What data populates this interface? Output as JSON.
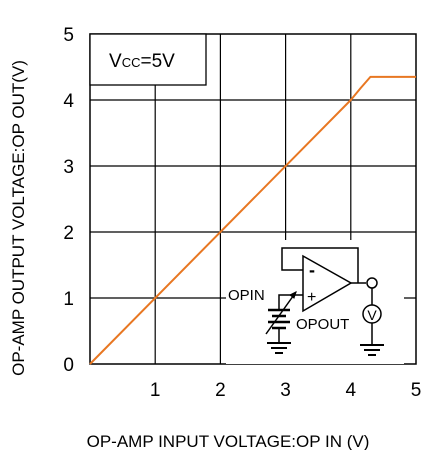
{
  "chart_data": {
    "type": "line",
    "xlabel": "OP-AMP INPUT VOLTAGE:OP IN (V)",
    "ylabel": "OP-AMP OUTPUT VOLTAGE:OP OUT(V)",
    "xlim": [
      0,
      5
    ],
    "ylim": [
      0,
      5
    ],
    "x_ticks": [
      "1",
      "2",
      "3",
      "4",
      "5"
    ],
    "y_ticks": [
      "0",
      "1",
      "2",
      "3",
      "4",
      "5"
    ],
    "grid": true,
    "condition_box": {
      "main": "V",
      "sub": "CC",
      "rest": "=5V"
    },
    "series": [
      {
        "color": "#e87722",
        "points": [
          [
            0,
            0
          ],
          [
            4.0,
            4.0
          ],
          [
            4.15,
            4.18
          ],
          [
            4.3,
            4.35
          ],
          [
            5,
            4.35
          ]
        ]
      }
    ],
    "inset_circuit": {
      "input_label": "OPIN",
      "output_label": "OPOUT",
      "meter_label": "V",
      "minus_sign": "-",
      "plus_sign": "+"
    }
  }
}
